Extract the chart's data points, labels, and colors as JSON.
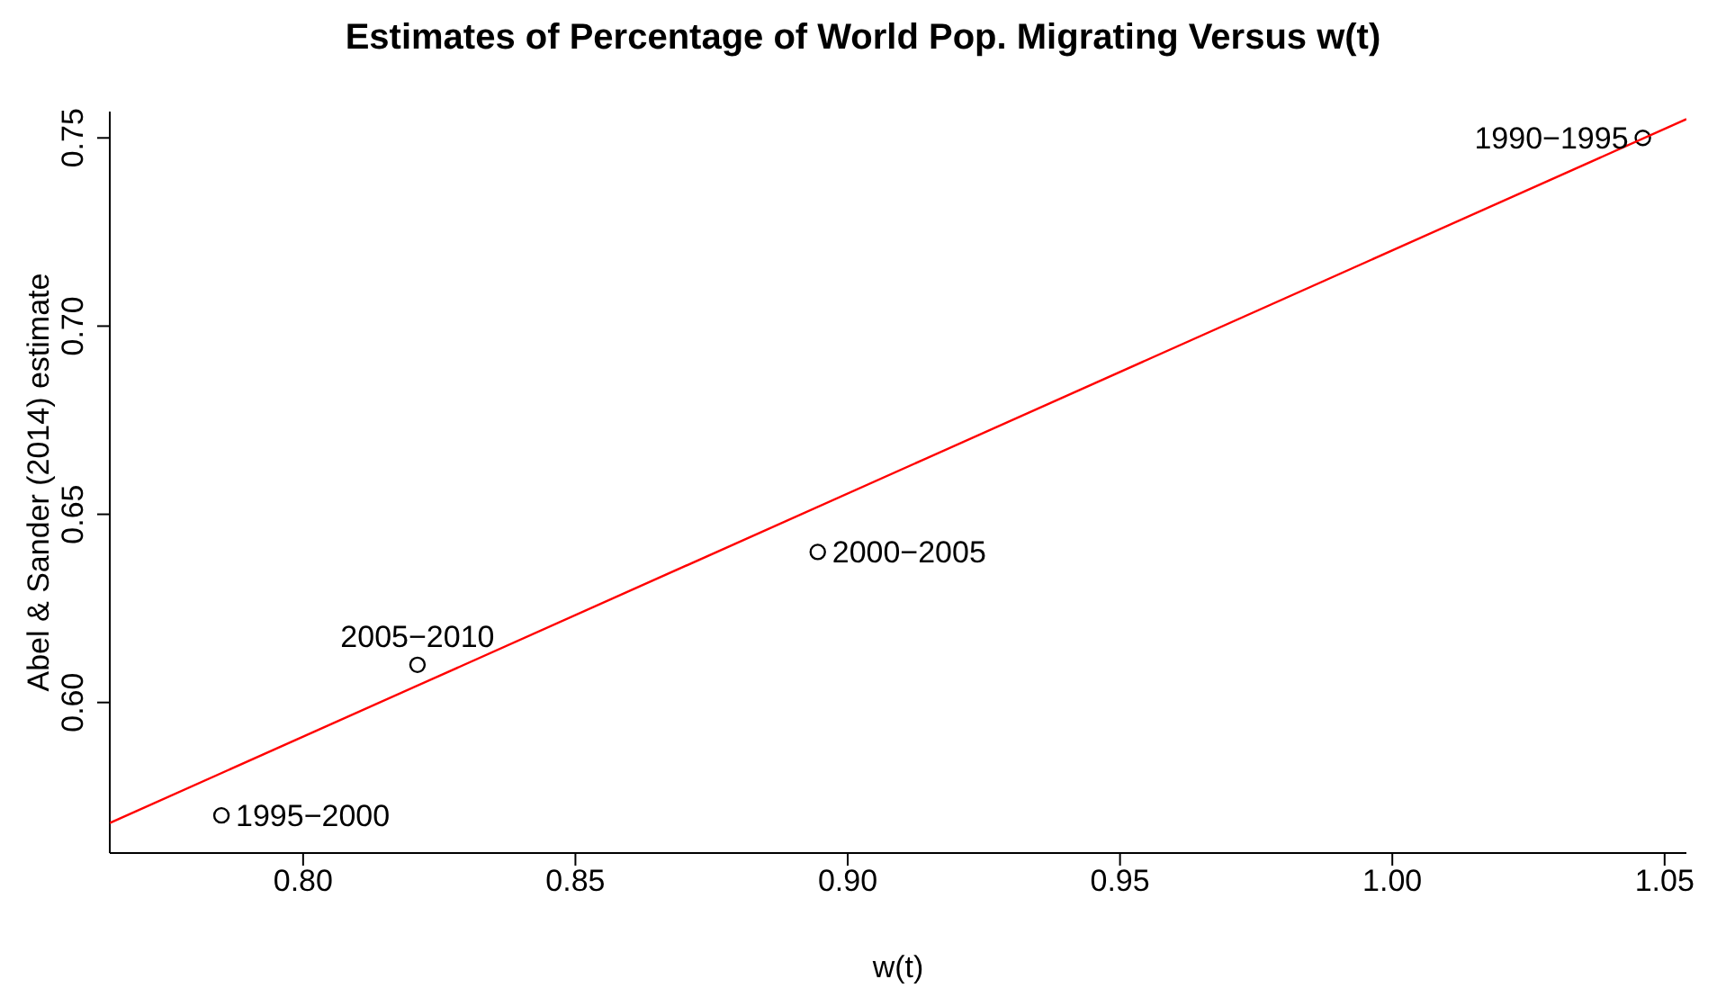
{
  "chart_data": {
    "type": "scatter",
    "title": "Estimates of Percentage of World Pop. Migrating Versus w(t)",
    "xlabel": "w(t)",
    "ylabel": "Abel & Sander (2014) estimate",
    "xlim": [
      0.7645,
      1.054
    ],
    "ylim": [
      0.56,
      0.757
    ],
    "xticks": [
      {
        "value": 0.8,
        "label": "0.80"
      },
      {
        "value": 0.85,
        "label": "0.85"
      },
      {
        "value": 0.9,
        "label": "0.90"
      },
      {
        "value": 0.95,
        "label": "0.95"
      },
      {
        "value": 1.0,
        "label": "1.00"
      },
      {
        "value": 1.05,
        "label": "1.05"
      }
    ],
    "yticks": [
      {
        "value": 0.6,
        "label": "0.60"
      },
      {
        "value": 0.65,
        "label": "0.65"
      },
      {
        "value": 0.7,
        "label": "0.70"
      },
      {
        "value": 0.75,
        "label": "0.75"
      }
    ],
    "marker": "circle",
    "series": [
      {
        "color": "#000000",
        "x": [
          1.046,
          0.785,
          0.821,
          0.8945
        ],
        "values": [
          0.75,
          0.57,
          0.61,
          0.64
        ]
      },
      {
        "type": "line",
        "marker": "none",
        "color": "#ff0000",
        "x": [
          0.7645,
          1.054
        ],
        "values": [
          0.568,
          0.755
        ]
      }
    ],
    "annotations": [
      {
        "text": "1990−1995",
        "x": 1.046,
        "y": 0.75
      },
      {
        "text": "1995−2000",
        "x": 0.785,
        "y": 0.57
      },
      {
        "text": "2005−2010",
        "x": 0.821,
        "y": 0.61
      },
      {
        "text": "2000−2005",
        "x": 0.8945,
        "y": 0.64
      }
    ]
  }
}
